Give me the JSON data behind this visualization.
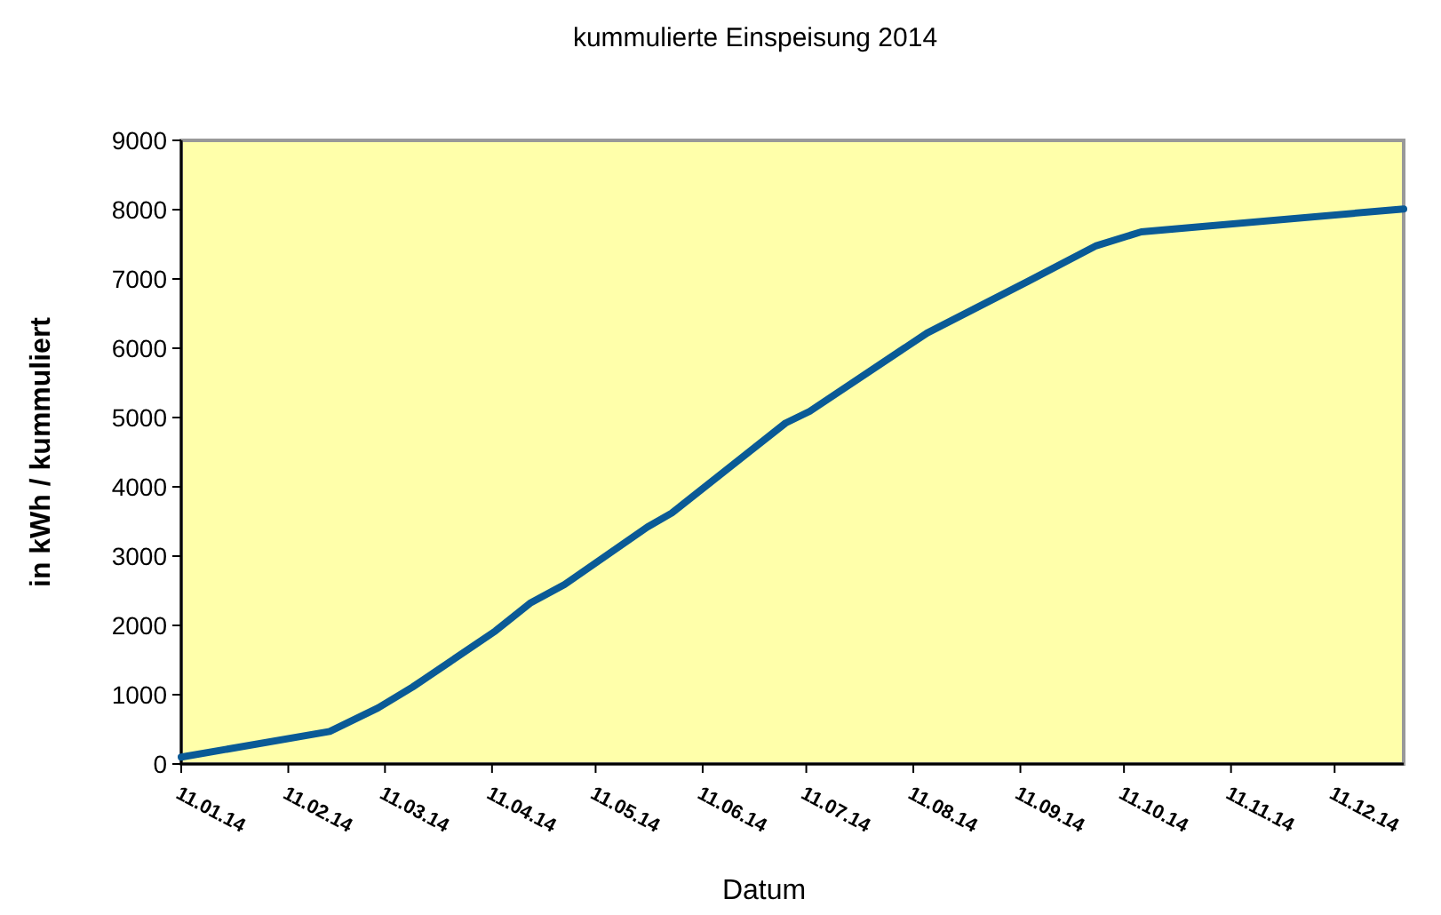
{
  "chart_data": {
    "type": "line",
    "title": "kummulierte Einspeisung 2014",
    "xlabel": "Datum",
    "ylabel": "in kWh / kummuliert",
    "x": [
      "2014-01-11",
      "2014-02-23",
      "2014-03-09",
      "2014-03-19",
      "2014-04-12",
      "2014-04-22",
      "2014-05-02",
      "2014-05-26",
      "2014-06-02",
      "2014-07-05",
      "2014-07-12",
      "2014-08-15",
      "2014-09-13",
      "2014-10-03",
      "2014-10-16",
      "2014-12-31"
    ],
    "series": [
      {
        "color": "#0a5a96",
        "values": [
          100,
          470,
          810,
          1110,
          1920,
          2320,
          2590,
          3420,
          3620,
          4920,
          5090,
          6220,
          6960,
          7480,
          7680,
          8010
        ]
      }
    ],
    "xlim": [
      "2014-01-11",
      "2014-12-31"
    ],
    "xticks": [
      {
        "value": "2014-01-11",
        "label": "11.01.14"
      },
      {
        "value": "2014-02-11",
        "label": "11.02.14"
      },
      {
        "value": "2014-03-11",
        "label": "11.03.14"
      },
      {
        "value": "2014-04-11",
        "label": "11.04.14"
      },
      {
        "value": "2014-05-11",
        "label": "11.05.14"
      },
      {
        "value": "2014-06-11",
        "label": "11.06.14"
      },
      {
        "value": "2014-07-11",
        "label": "11.07.14"
      },
      {
        "value": "2014-08-11",
        "label": "11.08.14"
      },
      {
        "value": "2014-09-11",
        "label": "11.09.14"
      },
      {
        "value": "2014-10-11",
        "label": "11.10.14"
      },
      {
        "value": "2014-11-11",
        "label": "11.11.14"
      },
      {
        "value": "2014-12-11",
        "label": "11.12.14"
      }
    ],
    "ylim": [
      0,
      9000
    ],
    "yticks": [
      0,
      1000,
      2000,
      3000,
      4000,
      5000,
      6000,
      7000,
      8000,
      9000
    ],
    "grid": false,
    "marker": "none",
    "line_style": "solid"
  }
}
